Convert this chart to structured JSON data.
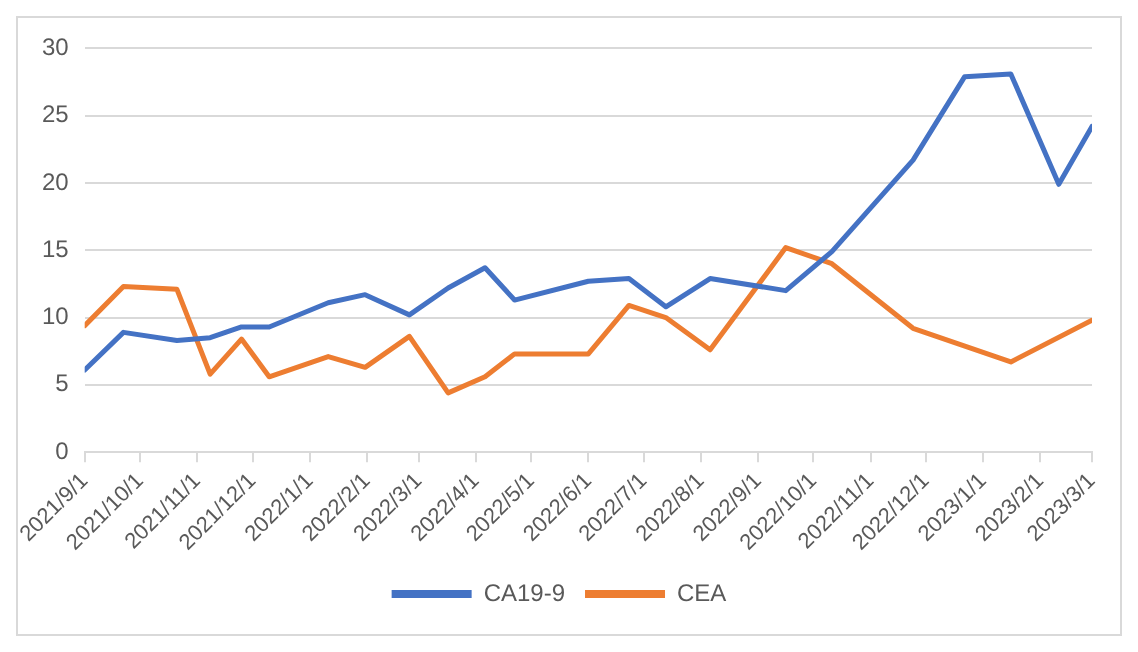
{
  "chart_data": {
    "type": "line",
    "xlim": [
      "2021-09-01",
      "2023-03-01"
    ],
    "xticks": [
      {
        "value": "2021-09-01",
        "label": "2021/9/1"
      },
      {
        "value": "2021-10-01",
        "label": "2021/10/1"
      },
      {
        "value": "2021-11-01",
        "label": "2021/11/1"
      },
      {
        "value": "2021-12-01",
        "label": "2021/12/1"
      },
      {
        "value": "2022-01-01",
        "label": "2022/1/1"
      },
      {
        "value": "2022-02-01",
        "label": "2022/2/1"
      },
      {
        "value": "2022-03-01",
        "label": "2022/3/1"
      },
      {
        "value": "2022-04-01",
        "label": "2022/4/1"
      },
      {
        "value": "2022-05-01",
        "label": "2022/5/1"
      },
      {
        "value": "2022-06-01",
        "label": "2022/6/1"
      },
      {
        "value": "2022-07-01",
        "label": "2022/7/1"
      },
      {
        "value": "2022-08-01",
        "label": "2022/8/1"
      },
      {
        "value": "2022-09-01",
        "label": "2022/9/1"
      },
      {
        "value": "2022-10-01",
        "label": "2022/10/1"
      },
      {
        "value": "2022-11-01",
        "label": "2022/11/1"
      },
      {
        "value": "2022-12-01",
        "label": "2022/12/1"
      },
      {
        "value": "2023-01-01",
        "label": "2023/1/1"
      },
      {
        "value": "2023-02-01",
        "label": "2023/2/1"
      },
      {
        "value": "2023-03-01",
        "label": "2023/3/1"
      }
    ],
    "ylim": [
      0,
      30
    ],
    "yticks": [
      0,
      5,
      10,
      15,
      20,
      25,
      30
    ],
    "grid": "y",
    "legend": "bottom",
    "marker": "none",
    "line_style": "solid",
    "series": [
      {
        "name": "CA19-9",
        "color": "#4472c4",
        "x": [
          "2021-09-01",
          "2021-09-22",
          "2021-10-21",
          "2021-11-08",
          "2021-11-25",
          "2021-12-10",
          "2022-01-11",
          "2022-01-31",
          "2022-02-24",
          "2022-03-17",
          "2022-04-06",
          "2022-04-22",
          "2022-06-01",
          "2022-06-23",
          "2022-07-13",
          "2022-08-06",
          "2022-09-16",
          "2022-10-11",
          "2022-11-24",
          "2022-12-22",
          "2023-01-16",
          "2023-02-11",
          "2023-03-01"
        ],
        "values": [
          6.1,
          8.9,
          8.3,
          8.5,
          9.3,
          9.3,
          11.1,
          11.7,
          10.2,
          12.2,
          13.7,
          11.3,
          12.7,
          12.9,
          10.8,
          12.9,
          12.0,
          14.9,
          21.7,
          27.9,
          28.1,
          19.9,
          24.2
        ]
      },
      {
        "name": "CEA",
        "color": "#ed7d31",
        "x": [
          "2021-09-01",
          "2021-09-22",
          "2021-10-21",
          "2021-11-08",
          "2021-11-25",
          "2021-12-10",
          "2022-01-11",
          "2022-01-31",
          "2022-02-24",
          "2022-03-17",
          "2022-04-06",
          "2022-04-22",
          "2022-06-01",
          "2022-06-23",
          "2022-07-13",
          "2022-08-06",
          "2022-09-16",
          "2022-10-11",
          "2022-11-24",
          "2023-01-16",
          "2023-03-01"
        ],
        "values": [
          9.4,
          12.3,
          12.1,
          5.8,
          8.4,
          5.6,
          7.1,
          6.3,
          8.6,
          4.4,
          5.6,
          7.3,
          7.3,
          10.9,
          10.0,
          7.6,
          15.2,
          14.0,
          9.2,
          6.7,
          9.8
        ]
      }
    ]
  }
}
